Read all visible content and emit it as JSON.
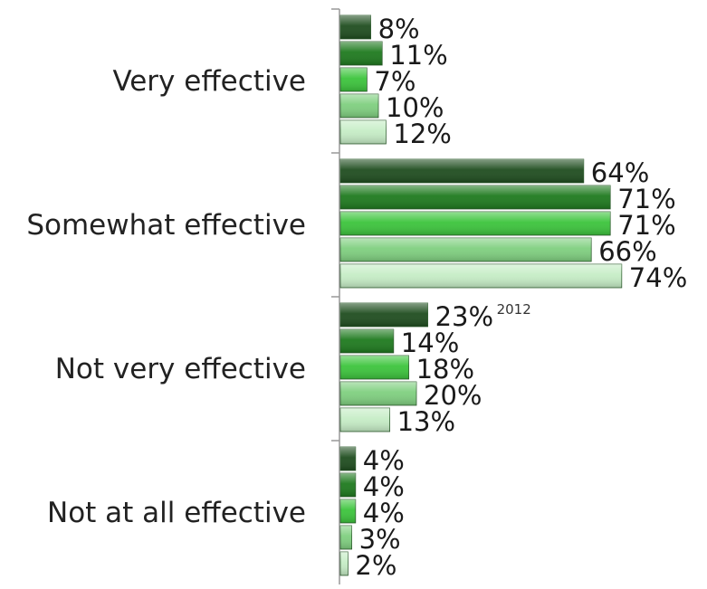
{
  "chart_data": {
    "type": "bar",
    "orientation": "horizontal",
    "categories": [
      "Very effective",
      "Somewhat effective",
      "Not very effective",
      "Not at all effective"
    ],
    "series": [
      {
        "name": "2012",
        "color": "#1f4d1f",
        "values": [
          8,
          64,
          23,
          4
        ]
      },
      {
        "color": "#1e7a1e",
        "values": [
          11,
          71,
          14,
          4
        ]
      },
      {
        "color": "#3cc43c",
        "values": [
          7,
          71,
          18,
          4
        ]
      },
      {
        "color": "#7fcf7f",
        "values": [
          10,
          66,
          20,
          3
        ]
      },
      {
        "color": "#c6edc6",
        "values": [
          12,
          74,
          13,
          2
        ]
      }
    ],
    "value_suffix": "%",
    "xlim": [
      0,
      100
    ],
    "grid": false,
    "legend": "none",
    "series_label_shown": "2012"
  }
}
